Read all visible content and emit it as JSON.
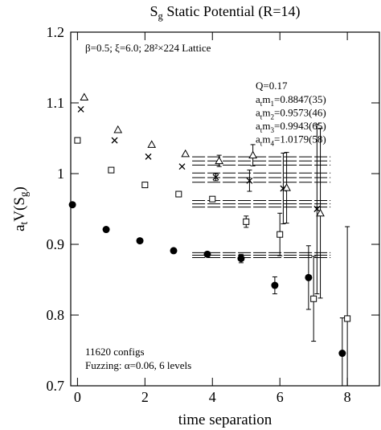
{
  "chart_data": {
    "type": "scatter",
    "title": [
      "S",
      "g",
      " Static Potential (R=14)"
    ],
    "xlabel": "time separation",
    "ylabel": [
      "a",
      "t",
      "V(S",
      "g",
      ")"
    ],
    "xlim": [
      -0.2,
      8.95
    ],
    "ylim": [
      0.7,
      1.2
    ],
    "xticks": [
      0,
      2,
      4,
      6,
      8
    ],
    "yticks": [
      0.7,
      0.8,
      0.9,
      1,
      1.1,
      1.2
    ],
    "annotations": {
      "lattice": "β=0.5; ξ=6.0; 28²×224 Lattice",
      "q": "Q=0.17",
      "masses": [
        [
          "a",
          "t",
          "m",
          "1",
          "=0.8847(35)"
        ],
        [
          "a",
          "t",
          "m",
          "2",
          "=0.9573(46)"
        ],
        [
          "a",
          "t",
          "m",
          "3",
          "=0.9943(65)"
        ],
        [
          "a",
          "t",
          "m",
          "4",
          "=1.0179(58)"
        ]
      ],
      "configs": "11620 configs",
      "fuzzing": "Fuzzing: α=0.06, 6 levels"
    },
    "fit_range": [
      3.4,
      7.5
    ],
    "fits": [
      {
        "value": 0.8847,
        "error": 0.0035
      },
      {
        "value": 0.9573,
        "error": 0.0046
      },
      {
        "value": 0.9943,
        "error": 0.0065
      },
      {
        "value": 1.0179,
        "error": 0.0058
      }
    ],
    "series": [
      {
        "marker": "circle",
        "color": "#000000",
        "x": [
          -0.15,
          0.85,
          1.85,
          2.85,
          3.85,
          4.85,
          5.85,
          6.85,
          7.85
        ],
        "values": [
          0.956,
          0.921,
          0.905,
          0.891,
          0.886,
          0.88,
          0.842,
          0.853,
          0.746
        ],
        "errors": [
          null,
          null,
          null,
          null,
          0.003,
          0.006,
          0.012,
          0.045,
          0.05
        ]
      },
      {
        "marker": "square",
        "color": "#000000",
        "x": [
          0,
          1,
          2,
          3,
          4,
          5,
          6,
          7,
          8
        ],
        "values": [
          1.047,
          1.005,
          0.984,
          0.971,
          0.964,
          0.932,
          0.914,
          0.823,
          0.795
        ],
        "errors": [
          null,
          null,
          null,
          null,
          0.003,
          0.008,
          0.03,
          0.06,
          0.13
        ]
      },
      {
        "marker": "cross",
        "color": "#000000",
        "x": [
          0.1,
          1.1,
          2.1,
          3.1,
          4.1,
          5.1,
          6.1,
          7.1
        ],
        "values": [
          1.091,
          1.047,
          1.024,
          1.01,
          0.995,
          0.99,
          0.979,
          0.95
        ],
        "errors": [
          null,
          null,
          null,
          null,
          0.005,
          0.015,
          0.05,
          0.12
        ]
      },
      {
        "marker": "triangle",
        "color": "#000000",
        "x": [
          0.2,
          1.2,
          2.2,
          3.2,
          4.2,
          5.2,
          6.2,
          7.2
        ],
        "values": [
          1.108,
          1.062,
          1.041,
          1.028,
          1.018,
          1.026,
          0.98,
          0.944
        ],
        "errors": [
          null,
          null,
          null,
          null,
          0.008,
          0.015,
          0.05,
          0.12
        ]
      }
    ]
  }
}
